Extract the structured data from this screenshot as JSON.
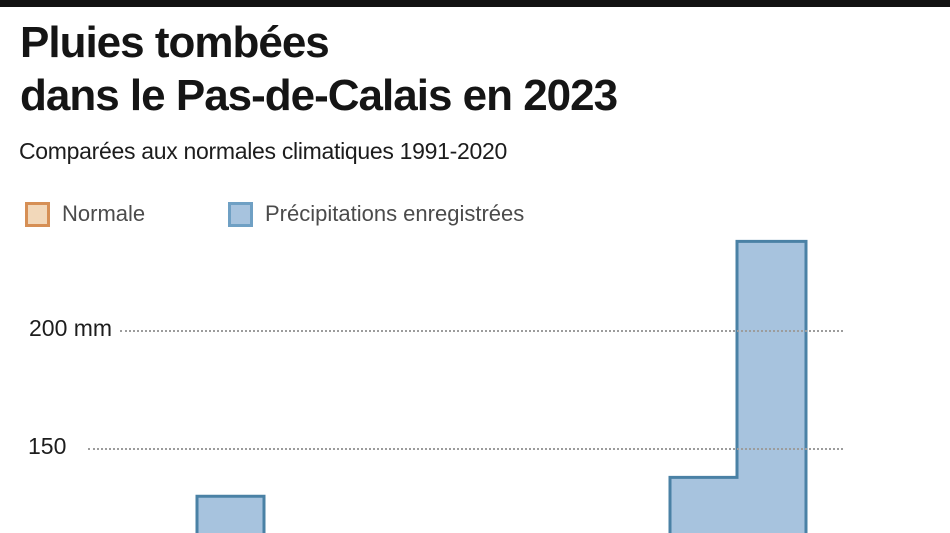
{
  "header": {
    "title_line1": "Pluies tombées",
    "title_line2": "dans le Pas-de-Calais en 2023",
    "subtitle": "Comparées aux normales climatiques 1991-2020"
  },
  "legend": {
    "items": [
      {
        "label": "Normale",
        "fill": "#f2d8ba",
        "border": "#d68f55"
      },
      {
        "label": "Précipitations enregistrées",
        "fill": "#a7c3de",
        "border": "#6fa0c4"
      }
    ]
  },
  "chart_data": {
    "type": "area",
    "subtype": "step",
    "title": "Pluies tombées dans le Pas-de-Calais en 2023",
    "subtitle": "Comparées aux normales climatiques 1991-2020",
    "unit": "mm",
    "legend_position": "top",
    "grid": "dotted horizontal",
    "gridlines": [
      {
        "label": "200 mm",
        "value": 200
      },
      {
        "label": "150",
        "value": 150
      }
    ],
    "series": [
      {
        "name": "Normale",
        "fill": "#f2d8ba",
        "stroke": "#d68f55",
        "visible_values_mm": []
      },
      {
        "name": "Précipitations enregistrées",
        "fill": "#a7c3de",
        "stroke": "#4a81a5",
        "visible_values_mm": [
          130,
          138,
          238
        ]
      }
    ],
    "visible_value_range_mm": [
      130,
      240
    ],
    "note_visible_crop": "image cropped: three step levels of the recorded-precipitation area are visible (~130 mm, ~138 mm, ~238 mm)"
  }
}
